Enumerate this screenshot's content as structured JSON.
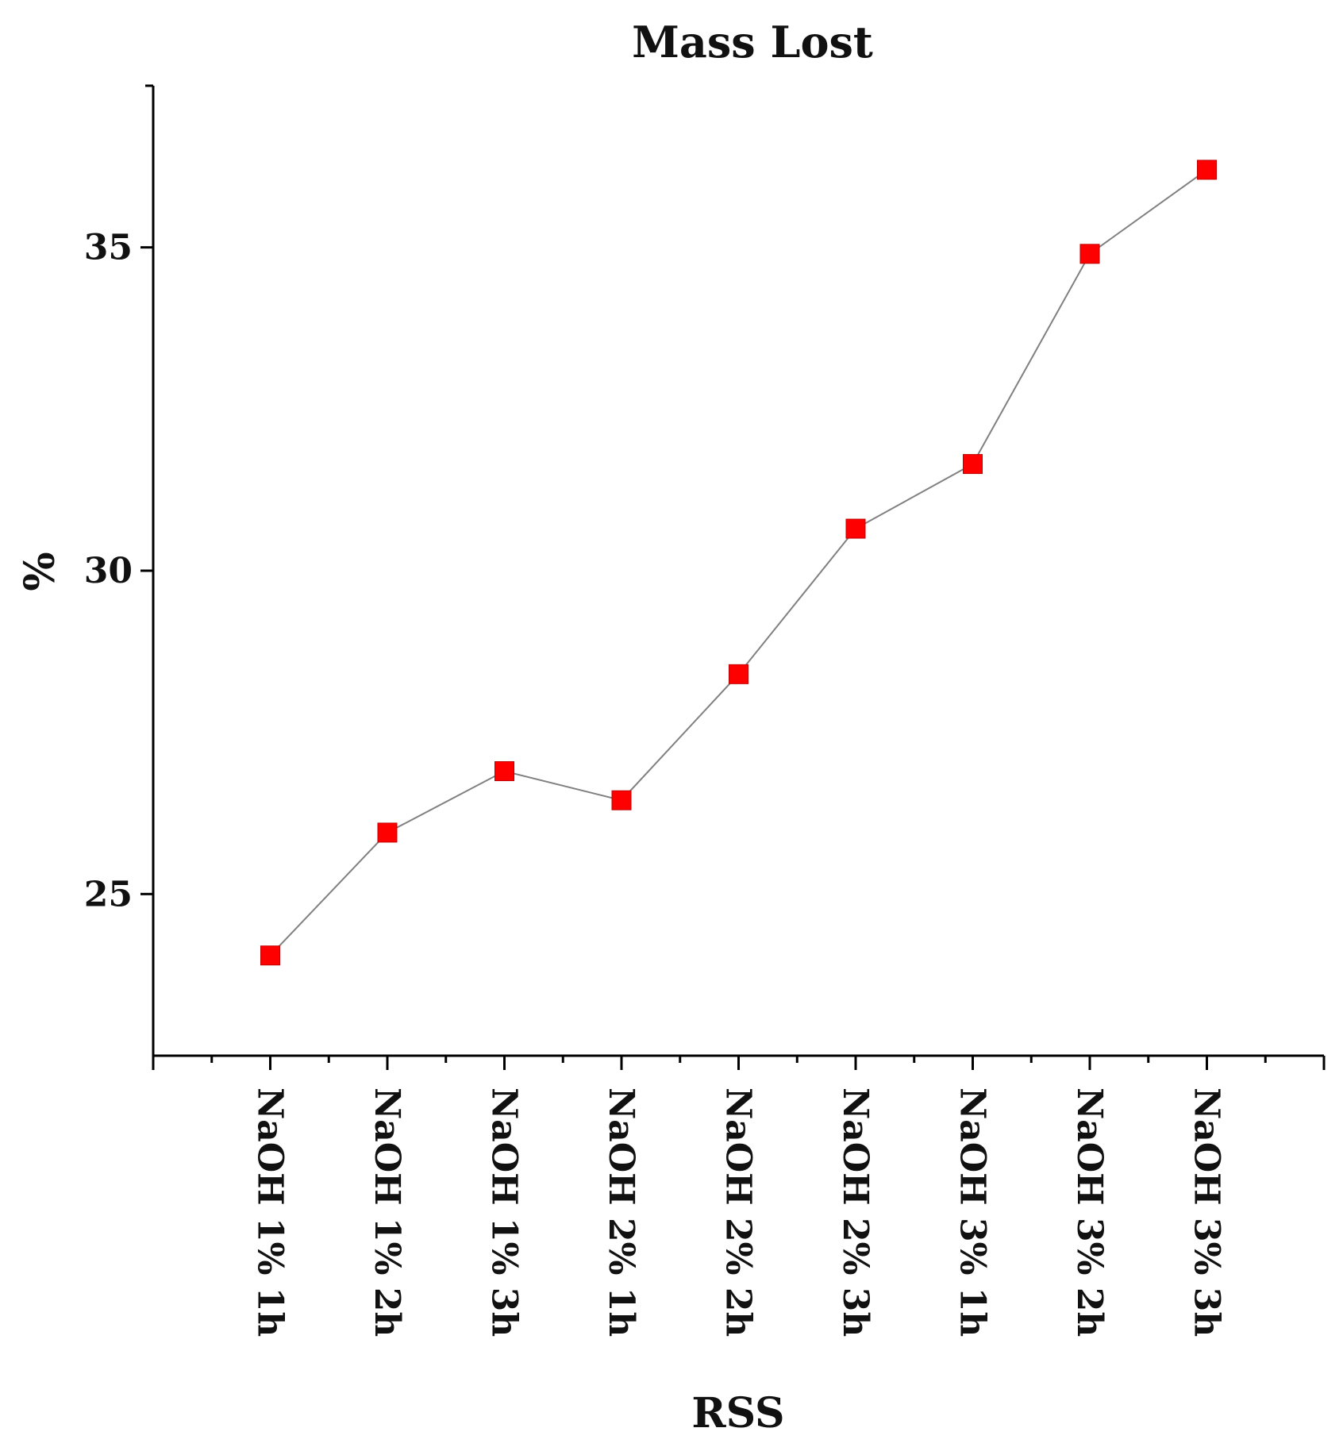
{
  "chart_data": {
    "type": "line",
    "title": "Mass Lost",
    "xlabel": "RSS",
    "ylabel": "%",
    "categories": [
      "NaOH 1% 1h",
      "NaOH 1% 2h",
      "NaOH 1% 3h",
      "NaOH 2% 1h",
      "NaOH 2% 2h",
      "NaOH 2% 3h",
      "NaOH 3% 1h",
      "NaOH 3% 2h",
      "NaOH 3% 3h"
    ],
    "values": [
      24.05,
      25.95,
      26.9,
      26.45,
      28.4,
      30.65,
      31.65,
      34.9,
      36.2
    ],
    "ylim": [
      22.5,
      37.5
    ],
    "yticks": [
      25,
      30,
      35
    ],
    "grid": false,
    "marker": "square",
    "colors": {
      "marker": "#ff0000",
      "line": "#808080",
      "axis": "#000000"
    }
  }
}
